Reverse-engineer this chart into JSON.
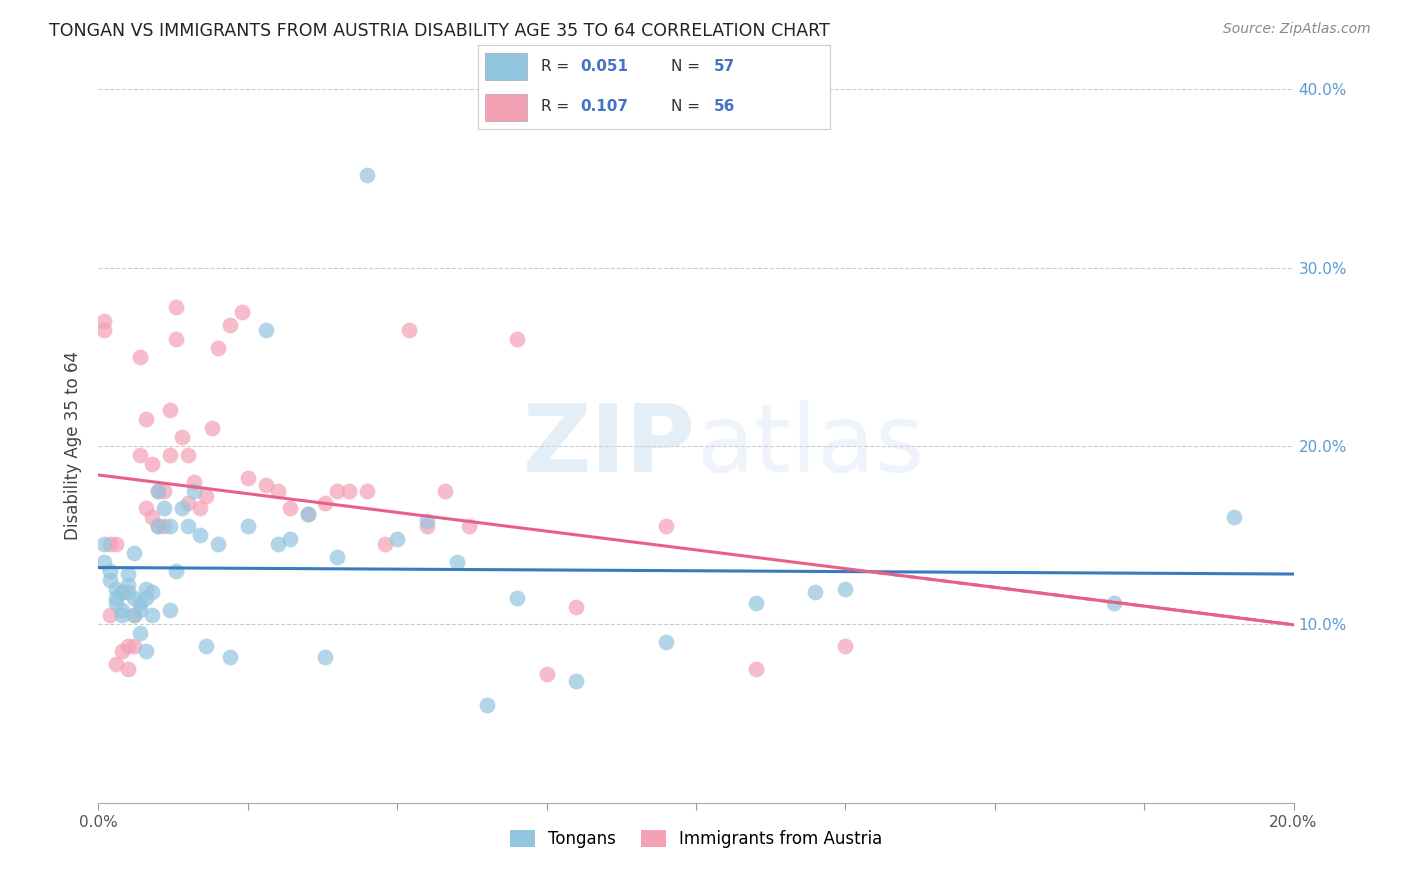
{
  "title": "TONGAN VS IMMIGRANTS FROM AUSTRIA DISABILITY AGE 35 TO 64 CORRELATION CHART",
  "source": "Source: ZipAtlas.com",
  "ylabel": "Disability Age 35 to 64",
  "xlim": [
    0.0,
    0.2
  ],
  "ylim": [
    0.0,
    0.4
  ],
  "xticks": [
    0.0,
    0.025,
    0.05,
    0.075,
    0.1,
    0.125,
    0.15,
    0.175,
    0.2
  ],
  "xticklabels": [
    "0.0%",
    "",
    "",
    "",
    "",
    "",
    "",
    "",
    "20.0%"
  ],
  "yticks": [
    0.0,
    0.1,
    0.2,
    0.3,
    0.4
  ],
  "yticklabels_right": [
    "",
    "10.0%",
    "20.0%",
    "30.0%",
    "40.0%"
  ],
  "legend_r1": "R = 0.051",
  "legend_n1": "N = 57",
  "legend_r2": "R = 0.107",
  "legend_n2": "N = 56",
  "legend_label1": "Tongans",
  "legend_label2": "Immigrants from Austria",
  "color_blue": "#92c5de",
  "color_pink": "#f4a0b5",
  "line_color_blue": "#3a7bbf",
  "line_color_pink": "#e8608a",
  "background_color": "#ffffff",
  "watermark_color": "#cfe0ef",
  "tongans_x": [
    0.001,
    0.001,
    0.002,
    0.002,
    0.003,
    0.003,
    0.003,
    0.004,
    0.004,
    0.004,
    0.005,
    0.005,
    0.005,
    0.006,
    0.006,
    0.006,
    0.007,
    0.007,
    0.007,
    0.008,
    0.008,
    0.008,
    0.009,
    0.009,
    0.01,
    0.01,
    0.011,
    0.012,
    0.012,
    0.013,
    0.014,
    0.015,
    0.016,
    0.017,
    0.018,
    0.02,
    0.022,
    0.025,
    0.028,
    0.03,
    0.032,
    0.035,
    0.038,
    0.04,
    0.045,
    0.05,
    0.055,
    0.06,
    0.065,
    0.07,
    0.08,
    0.095,
    0.11,
    0.12,
    0.125,
    0.17,
    0.19
  ],
  "tongans_y": [
    0.145,
    0.135,
    0.13,
    0.125,
    0.12,
    0.115,
    0.112,
    0.118,
    0.108,
    0.105,
    0.128,
    0.122,
    0.118,
    0.14,
    0.115,
    0.105,
    0.112,
    0.108,
    0.095,
    0.12,
    0.115,
    0.085,
    0.118,
    0.105,
    0.175,
    0.155,
    0.165,
    0.155,
    0.108,
    0.13,
    0.165,
    0.155,
    0.175,
    0.15,
    0.088,
    0.145,
    0.082,
    0.155,
    0.265,
    0.145,
    0.148,
    0.162,
    0.082,
    0.138,
    0.352,
    0.148,
    0.158,
    0.135,
    0.055,
    0.115,
    0.068,
    0.09,
    0.112,
    0.118,
    0.12,
    0.112,
    0.16
  ],
  "austria_x": [
    0.001,
    0.001,
    0.002,
    0.002,
    0.003,
    0.003,
    0.004,
    0.004,
    0.005,
    0.005,
    0.006,
    0.006,
    0.007,
    0.007,
    0.008,
    0.008,
    0.009,
    0.009,
    0.01,
    0.01,
    0.011,
    0.011,
    0.012,
    0.012,
    0.013,
    0.013,
    0.014,
    0.015,
    0.015,
    0.016,
    0.017,
    0.018,
    0.019,
    0.02,
    0.022,
    0.024,
    0.025,
    0.028,
    0.03,
    0.032,
    0.035,
    0.038,
    0.04,
    0.042,
    0.045,
    0.048,
    0.052,
    0.055,
    0.058,
    0.062,
    0.07,
    0.075,
    0.08,
    0.095,
    0.11,
    0.125
  ],
  "austria_y": [
    0.27,
    0.265,
    0.145,
    0.105,
    0.145,
    0.078,
    0.118,
    0.085,
    0.088,
    0.075,
    0.105,
    0.088,
    0.25,
    0.195,
    0.215,
    0.165,
    0.19,
    0.16,
    0.175,
    0.155,
    0.175,
    0.155,
    0.22,
    0.195,
    0.26,
    0.278,
    0.205,
    0.168,
    0.195,
    0.18,
    0.165,
    0.172,
    0.21,
    0.255,
    0.268,
    0.275,
    0.182,
    0.178,
    0.175,
    0.165,
    0.162,
    0.168,
    0.175,
    0.175,
    0.175,
    0.145,
    0.265,
    0.155,
    0.175,
    0.155,
    0.26,
    0.072,
    0.11,
    0.155,
    0.075,
    0.088
  ]
}
